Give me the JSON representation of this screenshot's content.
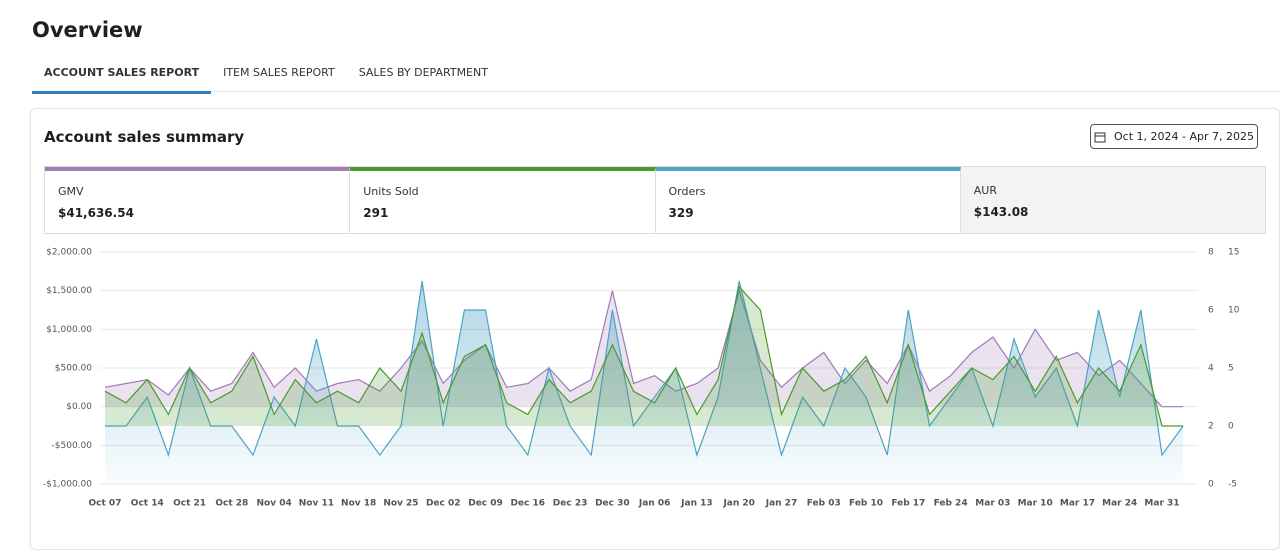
{
  "header": {
    "title": "Overview"
  },
  "tabs": [
    "ACCOUNT SALES REPORT",
    "ITEM SALES REPORT",
    "SALES BY DEPARTMENT"
  ],
  "card": {
    "title": "Account sales summary",
    "date_range": "Oct 1, 2024 - Apr 7, 2025"
  },
  "kpis": [
    {
      "value": "$41,636.54"
    },
    {
      "value": "291"
    },
    {
      "value": "329"
    },
    {
      "label": "AUR",
      "value": "$143.08"
    }
  ],
  "chart_data": {
    "type": "area",
    "categories": [
      "Oct 07",
      null,
      "Oct 14",
      null,
      "Oct 21",
      null,
      "Oct 28",
      null,
      "Nov 04",
      null,
      "Nov 11",
      null,
      "Nov 18",
      null,
      "Nov 25",
      null,
      "Dec 02",
      null,
      "Dec 09",
      null,
      "Dec 16",
      null,
      "Dec 23",
      null,
      "Dec 30",
      null,
      "Jan 06",
      null,
      "Jan 13",
      null,
      "Jan 20",
      null,
      "Jan 27",
      null,
      "Feb 03",
      null,
      "Feb 10",
      null,
      "Feb 17",
      null,
      "Feb 24",
      null,
      "Mar 03",
      null,
      "Mar 10",
      null,
      "Mar 17",
      null,
      "Mar 24",
      null,
      "Mar 31",
      null
    ],
    "series": [
      {
        "name": "GMV",
        "color": "#a07bb5",
        "axis": "y",
        "values": [
          250,
          300,
          350,
          150,
          500,
          200,
          300,
          700,
          250,
          500,
          200,
          300,
          350,
          200,
          500,
          850,
          300,
          600,
          800,
          250,
          300,
          500,
          200,
          350,
          1500,
          300,
          400,
          200,
          300,
          500,
          1500,
          600,
          250,
          500,
          700,
          300,
          600,
          300,
          800,
          200,
          400,
          700,
          900,
          500,
          1000,
          600,
          700,
          400,
          600,
          300,
          0,
          0
        ]
      },
      {
        "name": "Units Sold",
        "color": "#4b9a2b",
        "axis": "y3",
        "values": [
          3,
          2,
          4,
          1,
          5,
          2,
          3,
          6,
          1,
          4,
          2,
          3,
          2,
          5,
          3,
          8,
          2,
          6,
          7,
          2,
          1,
          4,
          2,
          3,
          7,
          3,
          2,
          5,
          1,
          4,
          12,
          10,
          1,
          5,
          3,
          4,
          6,
          2,
          7,
          1,
          3,
          5,
          4,
          6,
          3,
          6,
          2,
          5,
          3,
          7,
          0,
          0
        ]
      },
      {
        "name": "Orders",
        "color": "#4da3c4",
        "axis": "y2",
        "values": [
          2,
          2,
          3,
          1,
          4,
          2,
          2,
          1,
          3,
          2,
          5,
          2,
          2,
          1,
          2,
          7,
          2,
          6,
          6,
          2,
          1,
          4,
          2,
          1,
          6,
          2,
          3,
          4,
          1,
          3,
          7,
          4,
          1,
          3,
          2,
          4,
          3,
          1,
          6,
          2,
          3,
          4,
          2,
          5,
          3,
          4,
          2,
          6,
          3,
          6,
          1,
          2
        ]
      }
    ],
    "ylim": [
      -1000,
      2000
    ],
    "yticks": [
      {
        "value": -1000,
        "label": "-$1,000.00"
      },
      {
        "value": -500,
        "label": "-$500.00"
      },
      {
        "value": 0,
        "label": "$0.00"
      },
      {
        "value": 500,
        "label": "$500.00"
      },
      {
        "value": 1000,
        "label": "$1,000.00"
      },
      {
        "value": 1500,
        "label": "$1,500.00"
      },
      {
        "value": 2000,
        "label": "$2,000.00"
      }
    ],
    "y2lim": [
      0,
      8
    ],
    "y2ticks": [
      0,
      2,
      4,
      6,
      8
    ],
    "y3lim": [
      -5,
      15
    ],
    "y3ticks": [
      -5,
      0,
      5,
      10,
      15
    ],
    "grid": true
  }
}
